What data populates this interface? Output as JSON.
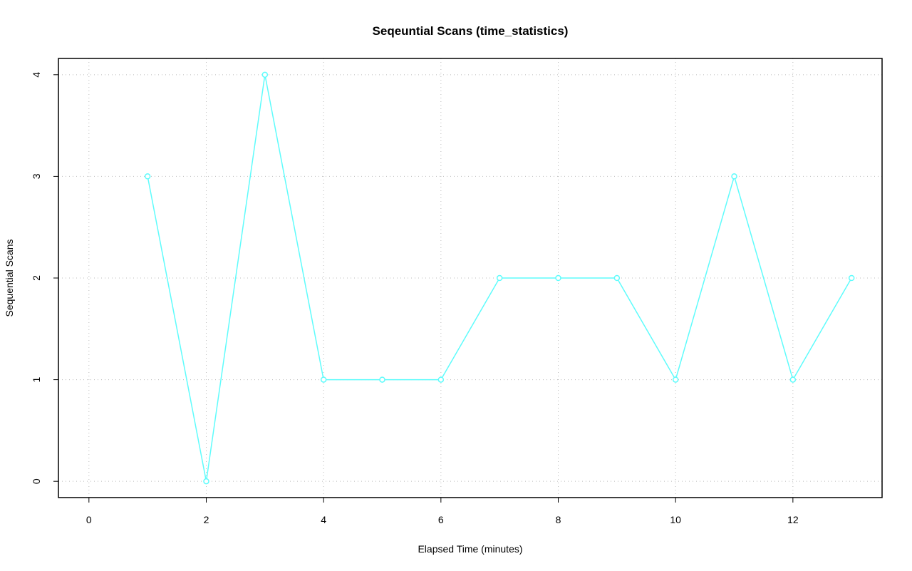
{
  "chart_data": {
    "type": "line",
    "title": "Seqeuntial Scans (time_statistics)",
    "x_label": "Elapsed Time (minutes)",
    "y_label": "Sequential Scans",
    "x": [
      1,
      2,
      3,
      4,
      5,
      6,
      7,
      8,
      9,
      10,
      11,
      12,
      13
    ],
    "series": [
      {
        "color": "#5ffcfc",
        "values": [
          3,
          0,
          4,
          1,
          1,
          1,
          2,
          2,
          2,
          1,
          3,
          1,
          2
        ]
      }
    ],
    "xlim": [
      -0.52,
      13.52
    ],
    "ylim": [
      -0.16,
      4.16
    ],
    "xticks": [
      0,
      2,
      4,
      6,
      8,
      10,
      12
    ],
    "yticks": [
      0,
      1,
      2,
      3,
      4
    ],
    "grid": true
  }
}
